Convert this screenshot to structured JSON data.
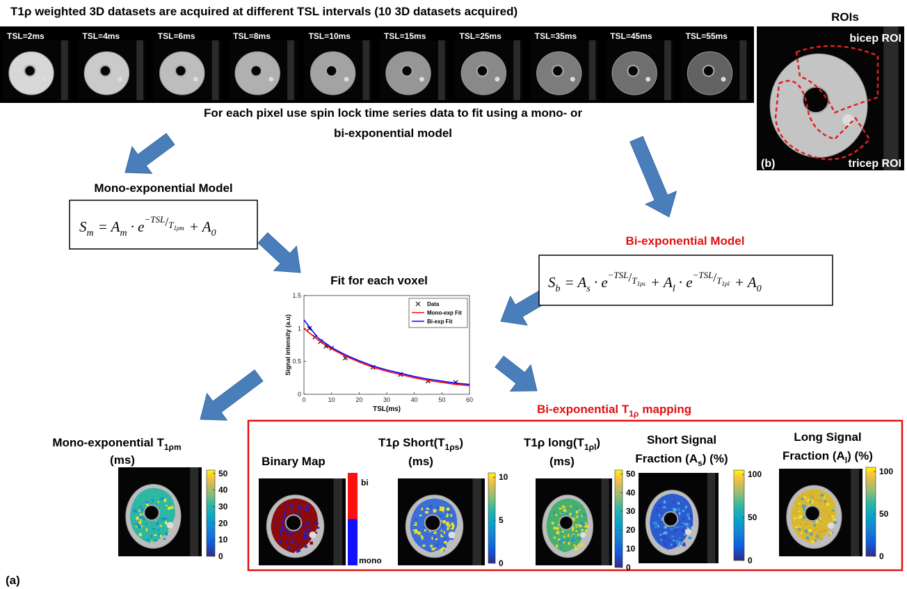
{
  "header": {
    "title": "T1ρ weighted 3D datasets are acquired at different TSL intervals (10 3D datasets acquired)"
  },
  "datasets": [
    "TSL=2ms",
    "TSL=4ms",
    "TSL=6ms",
    "TSL=8ms",
    "TSL=10ms",
    "TSL=15ms",
    "TSL=25ms",
    "TSL=35ms",
    "TSL=45ms",
    "TSL=55ms"
  ],
  "roi_panel": {
    "title": "ROIs",
    "bicep": "bicep ROI",
    "tricep": "tricep ROI",
    "label": "(b)"
  },
  "fit_instruction": [
    "For each pixel use spin lock time series data to fit using a mono- or",
    "bi-exponential model"
  ],
  "mono_model": {
    "title": "Mono-exponential Model",
    "equation": [
      "S",
      "m",
      "= A",
      "m",
      "· e",
      "−TSL",
      "/",
      "T",
      "1ρm",
      "+ A",
      "0"
    ]
  },
  "bi_model": {
    "title": "Bi-exponential Model",
    "equation": [
      "S",
      "b",
      "= A",
      "s",
      "· e",
      "−TSL",
      "/",
      "T",
      "1ρs",
      "+ A",
      "l",
      "· e",
      "−TSL",
      "/",
      "T",
      "1ρl",
      "+ A",
      "0"
    ]
  },
  "fit_plot": {
    "title": "Fit for each voxel",
    "xlabel": "TSL(ms)",
    "ylabel": "Signal intensity (a.u)",
    "xlim": [
      0,
      60
    ],
    "ylim": [
      0,
      1.5
    ],
    "xticks": [
      0,
      10,
      20,
      30,
      40,
      50,
      60
    ],
    "yticks": [
      0,
      0.5,
      1,
      1.5
    ],
    "series": [
      {
        "name": "Data",
        "color": "#000000",
        "kind": "markers",
        "x": [
          2,
          4,
          6,
          8,
          10,
          15,
          25,
          35,
          45,
          55
        ],
        "values": [
          1.0,
          0.87,
          0.8,
          0.73,
          0.7,
          0.55,
          0.41,
          0.3,
          0.2,
          0.18
        ]
      },
      {
        "name": "Mono-exp Fit",
        "color": "#ff0000",
        "kind": "line",
        "x": [
          0,
          5,
          10,
          15,
          20,
          25,
          30,
          35,
          40,
          45,
          50,
          55,
          60
        ],
        "values": [
          1.0,
          0.83,
          0.69,
          0.58,
          0.49,
          0.41,
          0.35,
          0.3,
          0.25,
          0.21,
          0.18,
          0.15,
          0.13
        ]
      },
      {
        "name": "Bi-exp Fit",
        "color": "#0000ff",
        "kind": "line",
        "x": [
          0,
          5,
          10,
          15,
          20,
          25,
          30,
          35,
          40,
          45,
          50,
          55,
          60
        ],
        "values": [
          1.13,
          0.86,
          0.71,
          0.6,
          0.51,
          0.43,
          0.37,
          0.32,
          0.27,
          0.23,
          0.2,
          0.17,
          0.15
        ]
      }
    ]
  },
  "mapping_title": [
    "Bi-exponential T",
    "1ρ",
    "mapping"
  ],
  "mono_map": {
    "title": [
      "Mono-exponential T",
      "1ρm",
      "(ms)"
    ],
    "colorbar": {
      "lim": [
        0,
        52
      ],
      "ticks": [
        0,
        10,
        20,
        30,
        40,
        50
      ]
    }
  },
  "bi_maps": [
    {
      "title": [
        "Binary Map"
      ],
      "colorbar": {
        "labels": [
          "bi",
          "mono"
        ]
      }
    },
    {
      "title": [
        "T1ρ Short(T",
        "1ρs",
        ")",
        "(ms)"
      ],
      "colorbar": {
        "lim": [
          0,
          10.5
        ],
        "ticks": [
          0,
          5,
          10
        ]
      }
    },
    {
      "title": [
        "T1ρ long(T",
        "1ρl",
        ")",
        "(ms)"
      ],
      "colorbar": {
        "lim": [
          0,
          52
        ],
        "ticks": [
          0,
          10,
          20,
          30,
          40,
          50
        ]
      }
    },
    {
      "title": [
        "Short Signal",
        "Fraction (A",
        "s",
        ") (%)"
      ],
      "colorbar": {
        "lim": [
          0,
          105
        ],
        "ticks": [
          0,
          50,
          100
        ]
      }
    },
    {
      "title": [
        "Long Signal",
        "Fraction (A",
        "l",
        ") (%)"
      ],
      "colorbar": {
        "lim": [
          0,
          105
        ],
        "ticks": [
          0,
          50,
          100
        ]
      }
    }
  ],
  "figure_label": "(a)"
}
